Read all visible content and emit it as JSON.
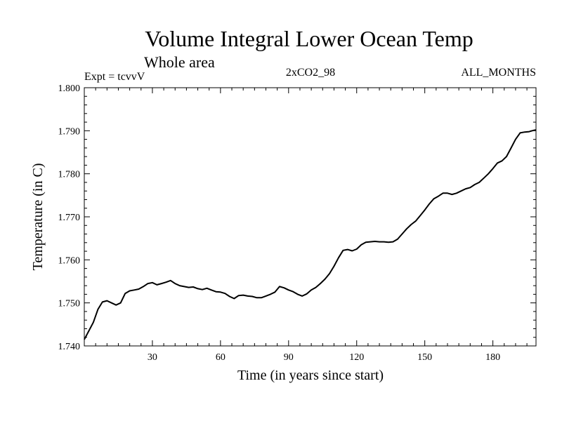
{
  "chart_data": {
    "type": "line",
    "title": "Volume Integral Lower Ocean Temp",
    "subtitle": "Whole area",
    "header_left": "Expt = tcvvV",
    "header_center": "2xCO2_98",
    "header_right": "ALL_MONTHS",
    "xlabel": "Time (in years since start)",
    "ylabel": "Temperature (in C)",
    "xlim": [
      0,
      199
    ],
    "ylim": [
      1.74,
      1.8
    ],
    "x_ticks": [
      30,
      60,
      90,
      120,
      150,
      180
    ],
    "x_tick_labels": [
      "30",
      "60",
      "90",
      "120",
      "150",
      "180"
    ],
    "y_ticks": [
      1.74,
      1.75,
      1.76,
      1.77,
      1.78,
      1.79,
      1.8
    ],
    "y_tick_labels": [
      "1.740",
      "1.750",
      "1.760",
      "1.770",
      "1.780",
      "1.790",
      "1.800"
    ],
    "grid": false,
    "line_color": "#000000",
    "series": [
      {
        "x": [
          0,
          2,
          4,
          6,
          8,
          10,
          12,
          14,
          16,
          18,
          20,
          22,
          24,
          26,
          28,
          30,
          32,
          34,
          36,
          38,
          40,
          42,
          44,
          46,
          48,
          50,
          52,
          54,
          56,
          58,
          60,
          62,
          64,
          66,
          68,
          70,
          72,
          74,
          76,
          78,
          80,
          82,
          84,
          86,
          88,
          90,
          92,
          94,
          96,
          98,
          100,
          102,
          104,
          106,
          108,
          110,
          112,
          114,
          116,
          118,
          120,
          122,
          124,
          126,
          128,
          130,
          132,
          134,
          136,
          138,
          140,
          142,
          144,
          146,
          148,
          150,
          152,
          154,
          156,
          158,
          160,
          162,
          164,
          166,
          168,
          170,
          172,
          174,
          176,
          178,
          180,
          182,
          184,
          186,
          188,
          190,
          192,
          194,
          196,
          198,
          199
        ],
        "values": [
          1.7415,
          1.7435,
          1.7455,
          1.7485,
          1.7502,
          1.7505,
          1.75,
          1.7495,
          1.75,
          1.7522,
          1.7528,
          1.753,
          1.7532,
          1.7538,
          1.7545,
          1.7547,
          1.7542,
          1.7545,
          1.7548,
          1.7552,
          1.7545,
          1.754,
          1.7538,
          1.7536,
          1.7537,
          1.7533,
          1.7531,
          1.7534,
          1.753,
          1.7526,
          1.7525,
          1.7522,
          1.7515,
          1.751,
          1.7517,
          1.7518,
          1.7516,
          1.7515,
          1.7512,
          1.7512,
          1.7516,
          1.752,
          1.7525,
          1.7538,
          1.7535,
          1.753,
          1.7526,
          1.752,
          1.7516,
          1.7521,
          1.753,
          1.7536,
          1.7545,
          1.7555,
          1.7568,
          1.7585,
          1.7605,
          1.7622,
          1.7624,
          1.7621,
          1.7625,
          1.7635,
          1.7641,
          1.7642,
          1.7643,
          1.7642,
          1.7642,
          1.7641,
          1.7642,
          1.7648,
          1.766,
          1.7672,
          1.7682,
          1.769,
          1.7703,
          1.7716,
          1.773,
          1.7742,
          1.7748,
          1.7755,
          1.7755,
          1.7752,
          1.7755,
          1.776,
          1.7765,
          1.7768,
          1.7775,
          1.778,
          1.779,
          1.78,
          1.7812,
          1.7825,
          1.783,
          1.784,
          1.786,
          1.788,
          1.7895,
          1.7897,
          1.7898,
          1.7901,
          1.7902
        ]
      }
    ]
  }
}
